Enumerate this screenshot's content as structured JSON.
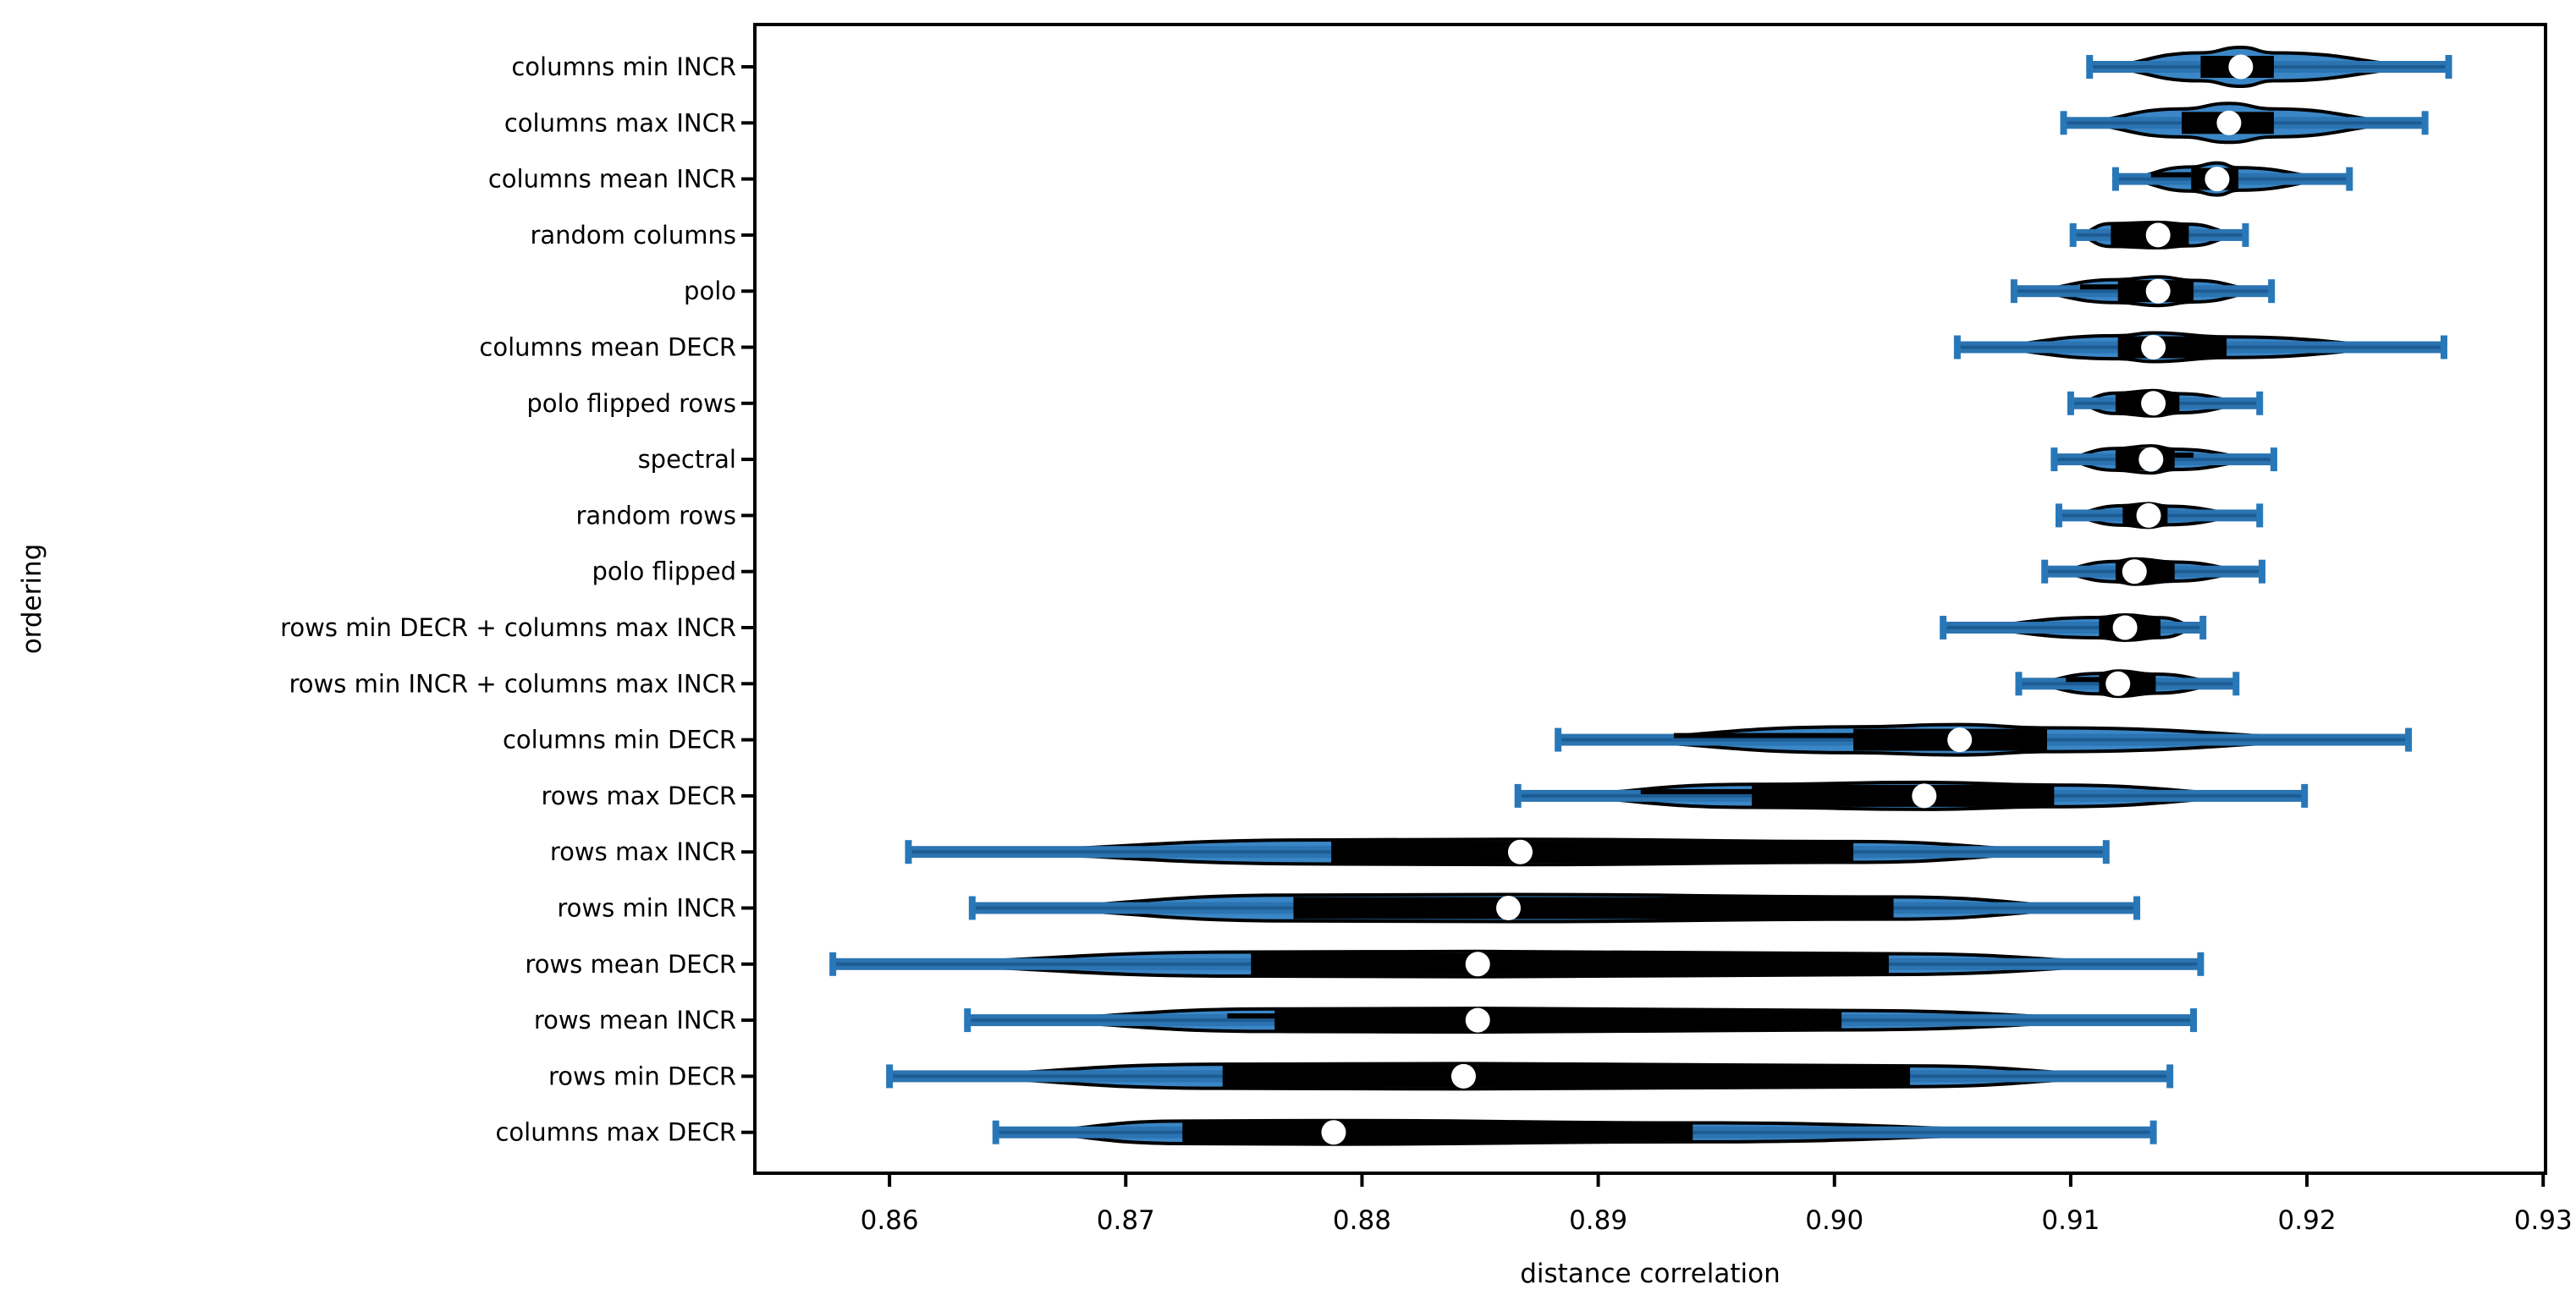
{
  "chart_data": {
    "type": "violin",
    "orientation": "horizontal",
    "title": "",
    "xlabel": "distance correlation",
    "ylabel": "ordering",
    "xlim": [
      0.8543,
      0.9301
    ],
    "x_ticks": [
      0.86,
      0.87,
      0.88,
      0.89,
      0.9,
      0.91,
      0.92,
      0.93
    ],
    "x_tick_labels": [
      "0.86",
      "0.87",
      "0.88",
      "0.89",
      "0.90",
      "0.91",
      "0.92",
      "0.93"
    ],
    "grid": false,
    "legend": null,
    "series": [
      {
        "label": "columns min INCR",
        "min": 0.9108,
        "q1": 0.9155,
        "median": 0.9172,
        "q3": 0.9186,
        "max": 0.926,
        "peak": 23,
        "shape": [
          0.72,
          0.72
        ],
        "inner_line": null
      },
      {
        "label": "columns max INCR",
        "min": 0.9097,
        "q1": 0.9147,
        "median": 0.9167,
        "q3": 0.9186,
        "max": 0.925,
        "peak": 23,
        "shape": [
          0.72,
          0.72
        ],
        "inner_line": null
      },
      {
        "label": "columns mean INCR",
        "min": 0.9119,
        "q1": 0.9151,
        "median": 0.9162,
        "q3": 0.9171,
        "max": 0.9218,
        "peak": 19,
        "shape": [
          0.75,
          0.7
        ],
        "inner_line": {
          "from": 0.9134,
          "side": "left"
        }
      },
      {
        "label": "random columns",
        "min": 0.9101,
        "q1": 0.9117,
        "median": 0.9137,
        "q3": 0.915,
        "max": 0.9174,
        "peak": 15,
        "shape": [
          0.9,
          0.85
        ],
        "inner_line": null
      },
      {
        "label": "polo",
        "min": 0.9076,
        "q1": 0.912,
        "median": 0.9137,
        "q3": 0.9152,
        "max": 0.9185,
        "peak": 17,
        "shape": [
          0.8,
          0.75
        ],
        "inner_line": {
          "from": 0.9104,
          "side": "left"
        }
      },
      {
        "label": "columns mean DECR",
        "min": 0.9052,
        "q1": 0.912,
        "median": 0.9135,
        "q3": 0.9166,
        "max": 0.9258,
        "peak": 17,
        "shape": [
          0.8,
          0.72
        ],
        "inner_line": null
      },
      {
        "label": "polo flipped rows",
        "min": 0.91,
        "q1": 0.9119,
        "median": 0.9135,
        "q3": 0.9146,
        "max": 0.918,
        "peak": 15,
        "shape": [
          0.8,
          0.75
        ],
        "inner_line": null
      },
      {
        "label": "spectral",
        "min": 0.9093,
        "q1": 0.9119,
        "median": 0.9134,
        "q3": 0.9144,
        "max": 0.9186,
        "peak": 16,
        "shape": [
          0.8,
          0.75
        ],
        "inner_line": {
          "from": 0.9152,
          "side": "right"
        }
      },
      {
        "label": "random rows",
        "min": 0.9095,
        "q1": 0.9122,
        "median": 0.9133,
        "q3": 0.9141,
        "max": 0.918,
        "peak": 14,
        "shape": [
          0.82,
          0.78
        ],
        "inner_line": null
      },
      {
        "label": "polo flipped",
        "min": 0.9089,
        "q1": 0.9119,
        "median": 0.9127,
        "q3": 0.9144,
        "max": 0.9181,
        "peak": 15,
        "shape": [
          0.8,
          0.75
        ],
        "inner_line": null
      },
      {
        "label": "rows min DECR + columns max INCR",
        "min": 0.9046,
        "q1": 0.9112,
        "median": 0.9123,
        "q3": 0.9138,
        "max": 0.9156,
        "peak": 15,
        "shape": [
          0.8,
          0.78
        ],
        "inner_line": null
      },
      {
        "label": "rows min INCR + columns max INCR",
        "min": 0.9078,
        "q1": 0.9112,
        "median": 0.912,
        "q3": 0.9136,
        "max": 0.917,
        "peak": 15,
        "shape": [
          0.8,
          0.75
        ],
        "inner_line": {
          "from": 0.9098,
          "side": "left"
        }
      },
      {
        "label": "columns min DECR",
        "min": 0.8883,
        "q1": 0.9008,
        "median": 0.9053,
        "q3": 0.909,
        "max": 0.9243,
        "peak": 18,
        "shape": [
          0.85,
          0.78
        ],
        "inner_line": {
          "from": 0.8932,
          "side": "left"
        }
      },
      {
        "label": "rows max DECR",
        "min": 0.8866,
        "q1": 0.8965,
        "median": 0.9038,
        "q3": 0.9093,
        "max": 0.9199,
        "peak": 16,
        "shape": [
          0.85,
          0.8
        ],
        "inner_line": {
          "from": 0.8918,
          "side": "left"
        }
      },
      {
        "label": "rows max INCR",
        "min": 0.8608,
        "q1": 0.8787,
        "median": 0.8867,
        "q3": 0.9008,
        "max": 0.9115,
        "peak": 15,
        "shape": [
          0.95,
          0.82
        ],
        "inner_line": null
      },
      {
        "label": "rows min INCR",
        "min": 0.8635,
        "q1": 0.8771,
        "median": 0.8862,
        "q3": 0.9025,
        "max": 0.9128,
        "peak": 16,
        "shape": [
          0.95,
          0.82
        ],
        "inner_line": null
      },
      {
        "label": "rows mean DECR",
        "min": 0.8576,
        "q1": 0.8753,
        "median": 0.8849,
        "q3": 0.9023,
        "max": 0.9155,
        "peak": 15,
        "shape": [
          0.95,
          0.82
        ],
        "inner_line": null
      },
      {
        "label": "rows mean INCR",
        "min": 0.8633,
        "q1": 0.8763,
        "median": 0.8849,
        "q3": 0.9003,
        "max": 0.9152,
        "peak": 14,
        "shape": [
          0.95,
          0.82
        ],
        "inner_line": {
          "from": 0.8743,
          "side": "left"
        }
      },
      {
        "label": "rows min DECR",
        "min": 0.86,
        "q1": 0.8741,
        "median": 0.8843,
        "q3": 0.9032,
        "max": 0.9142,
        "peak": 15,
        "shape": [
          0.95,
          0.82
        ],
        "inner_line": null
      },
      {
        "label": "columns max DECR",
        "min": 0.8645,
        "q1": 0.8724,
        "median": 0.8788,
        "q3": 0.894,
        "max": 0.9135,
        "peak": 14,
        "shape": [
          0.95,
          0.8
        ],
        "inner_line": null
      }
    ],
    "colors": {
      "violin_fill": "#3a86c6",
      "violin_outline": "#000000",
      "whisker_band": "#2b74b1",
      "whisker_band_dark": "#1d5c94",
      "whisker_cap": "#2878b9",
      "box": "#000000",
      "median_dot": "#ffffff",
      "axis": "#000000",
      "background": "#ffffff"
    }
  }
}
